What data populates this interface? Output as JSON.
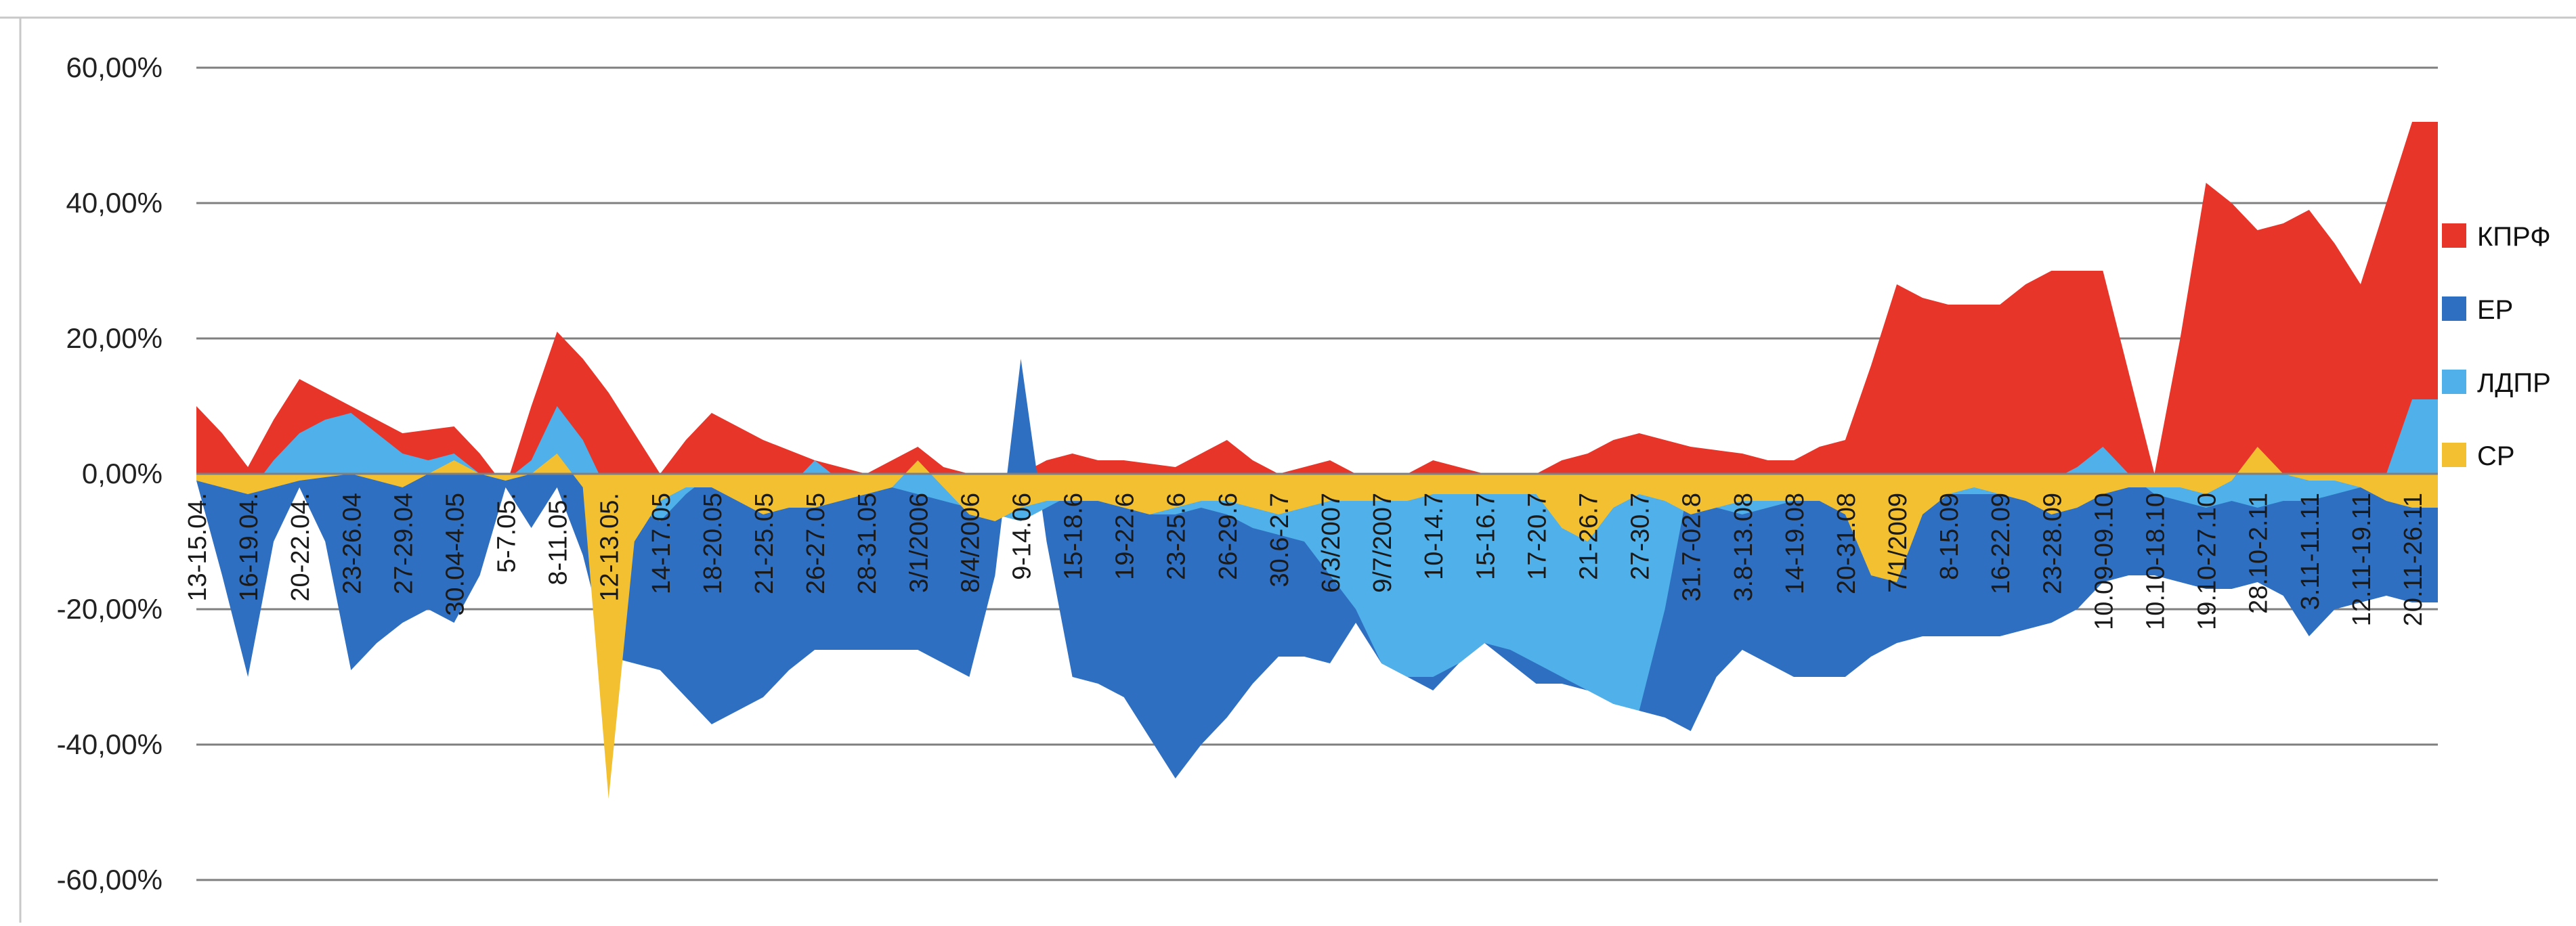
{
  "chart_data": {
    "type": "area",
    "title": "",
    "xlabel": "",
    "ylabel": "",
    "ylim": [
      -0.6,
      0.6
    ],
    "y_ticks": [
      0.6,
      0.4,
      0.2,
      0.0,
      -0.2,
      -0.4,
      -0.6
    ],
    "y_tick_labels": [
      "60,00%",
      "40,00%",
      "20,00%",
      "0,00%",
      "-20,00%",
      "-40,00%",
      "-60,00%"
    ],
    "grid": true,
    "legend_position": "right",
    "categories": [
      "13-15.04.",
      "",
      "16-19.04.",
      "",
      "20-22.04.",
      "",
      "23-26.04",
      "",
      "27-29.04",
      "",
      "30.04-4.05",
      "",
      "5-7.05.",
      "",
      "8-11.05.",
      "",
      "12-13.05.",
      "",
      "14-17.05",
      "",
      "18-20.05",
      "",
      "21-25.05",
      "",
      "26-27.05",
      "",
      "28-31.05",
      "",
      "3/1/2006",
      "",
      "8/4/2006",
      "",
      "9-14.06",
      "",
      "15-18.6",
      "",
      "19-22.6",
      "",
      "23-25.6",
      "",
      "26-29.6",
      "",
      "30.6-2.7",
      "",
      "6/3/2007",
      "",
      "9/7/2007",
      "",
      "10-14.7",
      "",
      "15-16.7",
      "",
      "17-20.7",
      "",
      "21-26.7",
      "",
      "27-30.7",
      "",
      "31.7-02.8",
      "",
      "3.8-13.08",
      "",
      "14-19.08",
      "",
      "20-31.08",
      "",
      "7/1/2009",
      "",
      "8-15.09",
      "",
      "16-22.09",
      "",
      "23-28.09",
      "",
      "10.09-09.10",
      "",
      "10.10-18.10",
      "",
      "19.10-27.10",
      "",
      "28.10-2.11",
      "",
      "3.11-11.11",
      "",
      "12.11-19.11",
      "",
      "20.11-26.11",
      ""
    ],
    "series": [
      {
        "name": "КПРФ",
        "color": "#e8352a",
        "values": [
          0.1,
          0.06,
          0.01,
          0.08,
          0.14,
          0.12,
          0.1,
          0.08,
          0.06,
          0.065,
          0.07,
          0.03,
          -0.02,
          0.1,
          0.21,
          0.17,
          0.12,
          0.06,
          0.0,
          0.05,
          0.09,
          0.07,
          0.05,
          0.035,
          0.02,
          0.01,
          0.0,
          0.02,
          0.04,
          0.01,
          0.0,
          0.0,
          0.0,
          0.02,
          0.03,
          0.02,
          0.02,
          0.015,
          0.01,
          0.03,
          0.05,
          0.02,
          0.0,
          0.01,
          0.02,
          0.0,
          0.0,
          0.0,
          0.02,
          0.01,
          0.0,
          0.0,
          0.0,
          0.02,
          0.03,
          0.05,
          0.06,
          0.05,
          0.04,
          0.035,
          0.03,
          0.02,
          0.02,
          0.04,
          0.05,
          0.16,
          0.28,
          0.26,
          0.25,
          0.25,
          0.25,
          0.28,
          0.3,
          0.3,
          0.3,
          0.15,
          0.0,
          0.2,
          0.43,
          0.4,
          0.36,
          0.37,
          0.39,
          0.34,
          0.28,
          0.4,
          0.52,
          0.52
        ]
      },
      {
        "name": "ЕР",
        "color": "#2e6fc2",
        "values": [
          -0.01,
          -0.15,
          -0.3,
          -0.1,
          -0.02,
          -0.1,
          -0.29,
          -0.25,
          -0.22,
          -0.2,
          -0.22,
          -0.15,
          -0.02,
          -0.08,
          -0.02,
          -0.12,
          -0.27,
          -0.28,
          -0.29,
          -0.33,
          -0.37,
          -0.35,
          -0.33,
          -0.29,
          -0.26,
          -0.26,
          -0.26,
          -0.26,
          -0.26,
          -0.28,
          -0.3,
          -0.15,
          0.17,
          -0.1,
          -0.3,
          -0.31,
          -0.33,
          -0.39,
          -0.45,
          -0.4,
          -0.36,
          -0.31,
          -0.27,
          -0.27,
          -0.28,
          -0.22,
          -0.28,
          -0.3,
          -0.32,
          -0.28,
          -0.25,
          -0.28,
          -0.31,
          -0.31,
          -0.32,
          -0.33,
          -0.35,
          -0.36,
          -0.38,
          -0.3,
          -0.26,
          -0.28,
          -0.3,
          -0.3,
          -0.3,
          -0.27,
          -0.25,
          -0.24,
          -0.24,
          -0.24,
          -0.24,
          -0.23,
          -0.22,
          -0.2,
          -0.16,
          -0.15,
          -0.15,
          -0.16,
          -0.17,
          -0.17,
          -0.16,
          -0.18,
          -0.24,
          -0.2,
          -0.19,
          -0.18,
          -0.19,
          -0.19
        ]
      },
      {
        "name": "ЛДПР",
        "color": "#4fb0ea",
        "values": [
          0.0,
          -0.02,
          -0.03,
          0.02,
          0.06,
          0.08,
          0.09,
          0.06,
          0.03,
          0.02,
          0.03,
          0.0,
          -0.01,
          0.02,
          0.1,
          0.05,
          -0.03,
          -0.05,
          -0.07,
          -0.03,
          0.0,
          -0.02,
          -0.04,
          -0.02,
          0.02,
          -0.01,
          -0.03,
          -0.02,
          -0.03,
          -0.04,
          -0.05,
          -0.06,
          -0.07,
          -0.05,
          -0.03,
          -0.04,
          -0.05,
          -0.06,
          -0.06,
          -0.05,
          -0.06,
          -0.08,
          -0.09,
          -0.1,
          -0.15,
          -0.2,
          -0.28,
          -0.3,
          -0.3,
          -0.28,
          -0.25,
          -0.26,
          -0.28,
          -0.3,
          -0.32,
          -0.34,
          -0.35,
          -0.2,
          0.0,
          -0.05,
          -0.06,
          -0.05,
          -0.04,
          -0.04,
          -0.03,
          -0.04,
          -0.05,
          -0.04,
          -0.03,
          -0.03,
          -0.03,
          -0.02,
          -0.01,
          0.01,
          0.04,
          0.0,
          -0.03,
          -0.04,
          -0.05,
          -0.04,
          -0.05,
          -0.04,
          -0.04,
          -0.03,
          -0.02,
          0.0,
          0.11,
          0.11
        ]
      },
      {
        "name": "СР",
        "color": "#f2c030",
        "values": [
          -0.01,
          -0.02,
          -0.03,
          -0.02,
          -0.01,
          -0.005,
          0.0,
          -0.01,
          -0.02,
          0.0,
          0.02,
          0.0,
          -0.01,
          0.0,
          0.03,
          -0.02,
          -0.48,
          -0.1,
          -0.04,
          -0.02,
          -0.02,
          -0.04,
          -0.06,
          -0.05,
          -0.05,
          -0.04,
          -0.03,
          -0.02,
          0.02,
          -0.02,
          -0.06,
          -0.07,
          -0.05,
          -0.04,
          -0.04,
          -0.04,
          -0.05,
          -0.06,
          -0.05,
          -0.04,
          -0.04,
          -0.05,
          -0.06,
          -0.05,
          -0.04,
          -0.04,
          -0.04,
          -0.04,
          -0.03,
          -0.03,
          -0.03,
          -0.03,
          -0.03,
          -0.08,
          -0.1,
          -0.05,
          -0.03,
          -0.04,
          -0.06,
          -0.05,
          -0.04,
          -0.04,
          -0.04,
          -0.04,
          -0.06,
          -0.15,
          -0.16,
          -0.06,
          -0.03,
          -0.02,
          -0.03,
          -0.04,
          -0.06,
          -0.05,
          -0.03,
          -0.02,
          -0.02,
          -0.02,
          -0.03,
          -0.01,
          0.04,
          0.0,
          -0.01,
          -0.01,
          -0.02,
          -0.04,
          -0.05,
          -0.05
        ]
      }
    ]
  }
}
